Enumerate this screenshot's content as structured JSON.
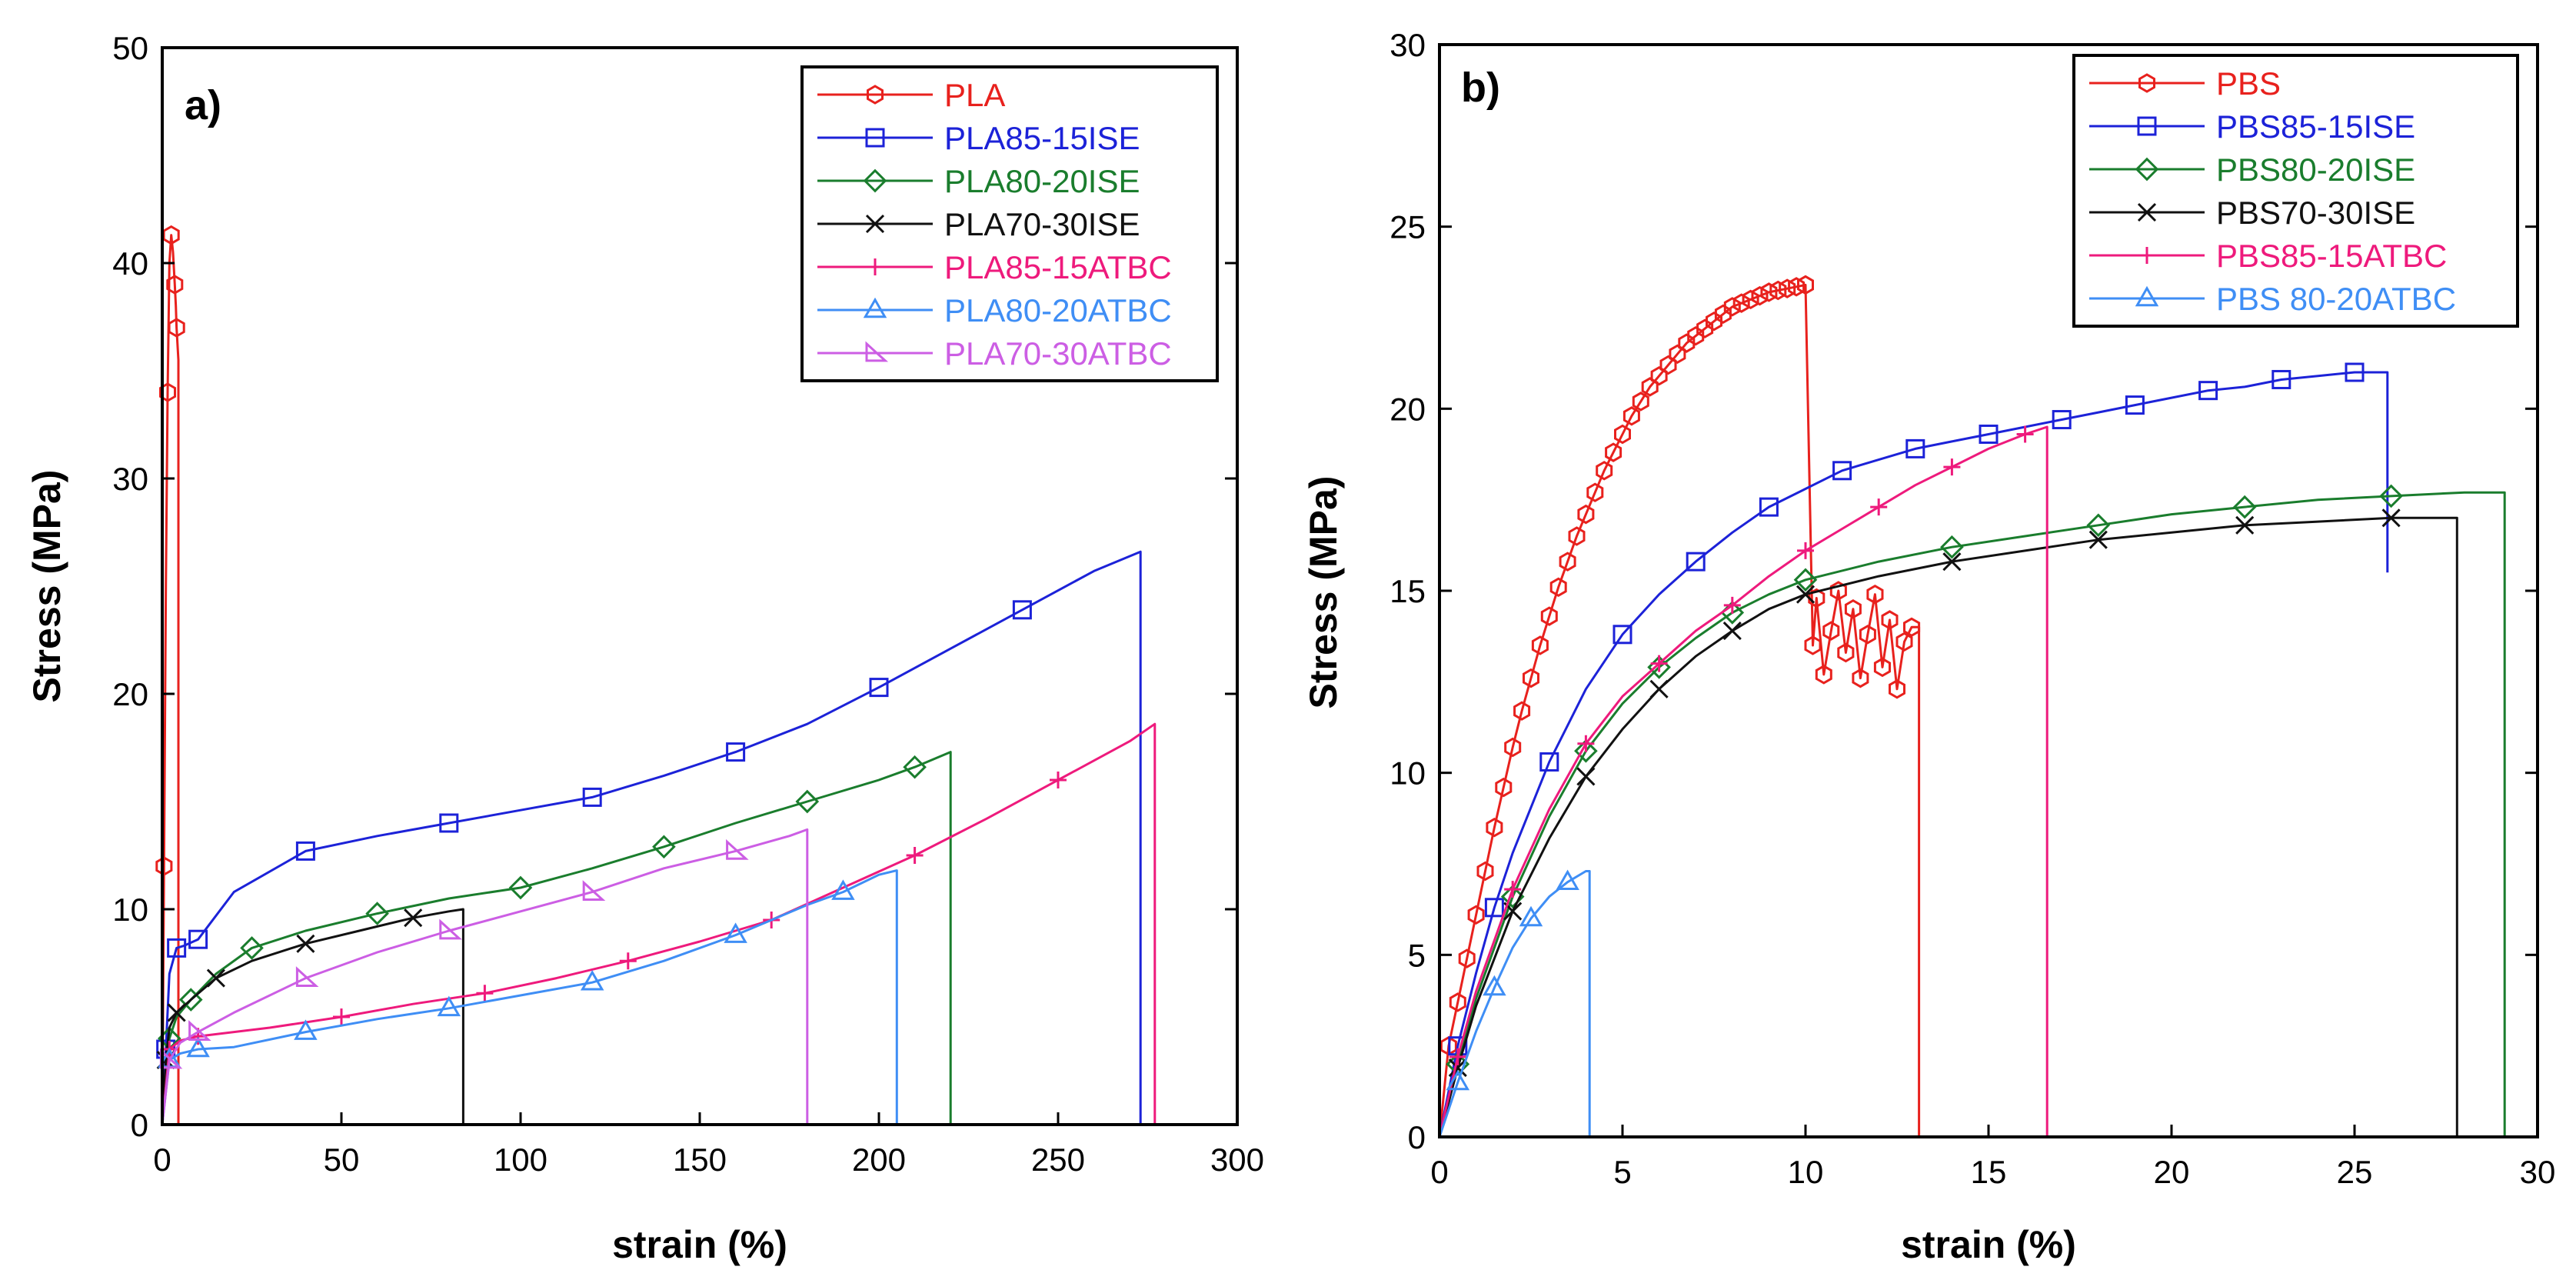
{
  "chart_data": [
    {
      "type": "line",
      "panel_label": "a)",
      "xlabel": "strain (%)",
      "ylabel": "Stress (MPa)",
      "xlim": [
        0,
        300
      ],
      "ylim": [
        0,
        50
      ],
      "x_ticks": [
        0,
        50,
        100,
        150,
        200,
        250,
        300
      ],
      "y_ticks": [
        0,
        10,
        20,
        30,
        40,
        50
      ],
      "grid": false,
      "legend_position": "top-right",
      "series": [
        {
          "name": "PLA",
          "color": "#e8211d",
          "marker": "hexagon",
          "x": [
            0,
            0.5,
            1,
            1.5,
            2,
            2.5,
            3,
            3.5,
            3.8,
            4,
            4.5
          ],
          "y": [
            0,
            12,
            25,
            34,
            40,
            41.3,
            40.5,
            39,
            38,
            37,
            35.5
          ],
          "drop_to": 0
        },
        {
          "name": "PLA85-15ISE",
          "color": "#1c22d8",
          "marker": "square",
          "x": [
            0,
            1,
            2,
            4,
            6,
            10,
            20,
            40,
            60,
            80,
            100,
            120,
            140,
            160,
            180,
            200,
            220,
            240,
            260,
            273
          ],
          "y": [
            0,
            3.5,
            7,
            8.2,
            8.3,
            8.6,
            10.8,
            12.7,
            13.4,
            14.0,
            14.6,
            15.2,
            16.2,
            17.3,
            18.6,
            20.3,
            22.1,
            23.9,
            25.7,
            26.6
          ],
          "drop_to": 0
        },
        {
          "name": "PLA80-20ISE",
          "color": "#1a7d2d",
          "marker": "diamond",
          "x": [
            0,
            2,
            4,
            8,
            15,
            25,
            40,
            60,
            80,
            100,
            120,
            140,
            160,
            180,
            200,
            210,
            220
          ],
          "y": [
            0,
            4,
            5,
            5.8,
            7.0,
            8.2,
            9.0,
            9.8,
            10.5,
            11.0,
            11.9,
            12.9,
            14.0,
            15.0,
            16.0,
            16.6,
            17.3
          ],
          "drop_to": 0
        },
        {
          "name": "PLA70-30ISE",
          "color": "#111111",
          "marker": "x",
          "x": [
            0,
            1,
            2,
            4,
            8,
            15,
            25,
            40,
            55,
            70,
            80,
            84
          ],
          "y": [
            0,
            3,
            4.5,
            5.2,
            5.8,
            6.8,
            7.6,
            8.4,
            9.0,
            9.6,
            9.9,
            10.0
          ],
          "drop_to": 0
        },
        {
          "name": "PLA85-15ATBC",
          "color": "#ee1a7c",
          "marker": "plus",
          "x": [
            0,
            2,
            5,
            10,
            30,
            50,
            70,
            90,
            110,
            130,
            150,
            170,
            190,
            210,
            230,
            250,
            270,
            277
          ],
          "y": [
            0,
            3.5,
            3.9,
            4.1,
            4.5,
            5.0,
            5.6,
            6.1,
            6.8,
            7.6,
            8.5,
            9.5,
            11.0,
            12.5,
            14.2,
            16.0,
            17.8,
            18.6
          ],
          "drop_to": 0
        },
        {
          "name": "PLA80-20ATBC",
          "color": "#3f8ef5",
          "marker": "triangle",
          "x": [
            0,
            2,
            5,
            10,
            20,
            40,
            60,
            80,
            100,
            120,
            140,
            160,
            180,
            190,
            200,
            205
          ],
          "y": [
            0,
            3,
            3.3,
            3.5,
            3.6,
            4.3,
            4.9,
            5.4,
            6.0,
            6.6,
            7.6,
            8.8,
            10.2,
            10.8,
            11.6,
            11.8
          ],
          "drop_to": 0
        },
        {
          "name": "PLA70-30ATBC",
          "color": "#cc5ee4",
          "marker": "triangle-right",
          "x": [
            0,
            2,
            5,
            10,
            20,
            40,
            60,
            80,
            100,
            120,
            140,
            160,
            175,
            180
          ],
          "y": [
            0,
            3,
            3.8,
            4.3,
            5.2,
            6.8,
            8.0,
            9.0,
            9.9,
            10.8,
            11.9,
            12.7,
            13.4,
            13.7
          ],
          "drop_to": 0
        }
      ]
    },
    {
      "type": "line",
      "panel_label": "b)",
      "xlabel": "strain (%)",
      "ylabel": "Stress (MPa)",
      "xlim": [
        0,
        30
      ],
      "ylim": [
        0,
        30
      ],
      "x_ticks": [
        0,
        5,
        10,
        15,
        20,
        25,
        30
      ],
      "y_ticks": [
        0,
        5,
        10,
        15,
        20,
        25,
        30
      ],
      "grid": false,
      "legend_position": "top-right",
      "series": [
        {
          "name": "PBS",
          "color": "#e8211d",
          "marker": "hexagon",
          "x": [
            0,
            0.25,
            0.5,
            0.75,
            1,
            1.25,
            1.5,
            1.75,
            2,
            2.25,
            2.5,
            2.75,
            3,
            3.25,
            3.5,
            3.75,
            4,
            4.25,
            4.5,
            4.75,
            5,
            5.25,
            5.5,
            5.75,
            6,
            6.25,
            6.5,
            6.75,
            7,
            7.25,
            7.5,
            7.75,
            8,
            8.25,
            8.5,
            8.75,
            9,
            9.25,
            9.5,
            9.75,
            10,
            10.2,
            10.3,
            10.5,
            10.7,
            10.9,
            11.1,
            11.3,
            11.5,
            11.7,
            11.9,
            12.1,
            12.3,
            12.5,
            12.7,
            12.9,
            13.1
          ],
          "y": [
            0,
            2.5,
            3.7,
            4.9,
            6.1,
            7.3,
            8.5,
            9.6,
            10.7,
            11.7,
            12.6,
            13.5,
            14.3,
            15.1,
            15.8,
            16.5,
            17.1,
            17.7,
            18.3,
            18.8,
            19.3,
            19.8,
            20.2,
            20.6,
            20.9,
            21.2,
            21.5,
            21.8,
            22.0,
            22.2,
            22.4,
            22.6,
            22.8,
            22.9,
            23.0,
            23.1,
            23.2,
            23.25,
            23.3,
            23.35,
            23.4,
            13.5,
            14.8,
            12.7,
            13.9,
            15.0,
            13.3,
            14.5,
            12.6,
            13.8,
            14.9,
            12.9,
            14.2,
            12.3,
            13.6,
            14.0,
            14.0
          ],
          "drop_to": 0
        },
        {
          "name": "PBS85-15ISE",
          "color": "#1c22d8",
          "marker": "square",
          "x": [
            0,
            0.5,
            1,
            1.5,
            2,
            3,
            4,
            5,
            6,
            7,
            8,
            9,
            10,
            11,
            12,
            13,
            14,
            15,
            16,
            17,
            18,
            19,
            20,
            21,
            22,
            23,
            24,
            25,
            25.9
          ],
          "y": [
            0,
            2.5,
            4.5,
            6.3,
            7.8,
            10.3,
            12.3,
            13.8,
            14.9,
            15.8,
            16.6,
            17.3,
            17.8,
            18.3,
            18.6,
            18.9,
            19.1,
            19.3,
            19.5,
            19.7,
            19.9,
            20.1,
            20.3,
            20.5,
            20.6,
            20.8,
            20.9,
            21.0,
            21.0
          ],
          "drop_to": 15.5
        },
        {
          "name": "PBS80-20ISE",
          "color": "#1a7d2d",
          "marker": "diamond",
          "x": [
            0,
            0.5,
            1,
            2,
            3,
            4,
            5,
            6,
            7,
            8,
            9,
            10,
            12,
            14,
            16,
            18,
            20,
            22,
            24,
            26,
            28,
            29.1
          ],
          "y": [
            0,
            2.0,
            3.8,
            6.6,
            8.8,
            10.6,
            11.9,
            12.9,
            13.7,
            14.4,
            14.9,
            15.3,
            15.8,
            16.2,
            16.5,
            16.8,
            17.1,
            17.3,
            17.5,
            17.6,
            17.7,
            17.7
          ],
          "drop_to": 0
        },
        {
          "name": "PBS70-30ISE",
          "color": "#111111",
          "marker": "x",
          "x": [
            0,
            0.5,
            1,
            2,
            3,
            4,
            5,
            6,
            7,
            8,
            9,
            10,
            12,
            14,
            16,
            18,
            20,
            22,
            24,
            26,
            27.8
          ],
          "y": [
            0,
            1.9,
            3.6,
            6.2,
            8.2,
            9.9,
            11.2,
            12.3,
            13.2,
            13.9,
            14.5,
            14.9,
            15.4,
            15.8,
            16.1,
            16.4,
            16.6,
            16.8,
            16.9,
            17.0,
            17.0
          ],
          "drop_to": 0
        },
        {
          "name": "PBS85-15ATBC",
          "color": "#ee1a7c",
          "marker": "plus",
          "x": [
            0,
            0.5,
            1,
            2,
            3,
            4,
            5,
            6,
            7,
            8,
            9,
            10,
            11,
            12,
            13,
            14,
            15,
            16,
            16.6
          ],
          "y": [
            0,
            2.2,
            4.0,
            6.8,
            9.0,
            10.8,
            12.1,
            13.0,
            13.9,
            14.6,
            15.4,
            16.1,
            16.7,
            17.3,
            17.9,
            18.4,
            18.9,
            19.3,
            19.5
          ],
          "drop_to": 0
        },
        {
          "name": "PBS 80-20ATBC",
          "color": "#3f8ef5",
          "marker": "triangle",
          "x": [
            0,
            0.5,
            1,
            1.5,
            2,
            2.5,
            3,
            3.5,
            4,
            4.1
          ],
          "y": [
            0,
            1.5,
            2.9,
            4.1,
            5.2,
            6.0,
            6.6,
            7.0,
            7.3,
            7.3
          ],
          "drop_to": 0
        }
      ]
    }
  ]
}
